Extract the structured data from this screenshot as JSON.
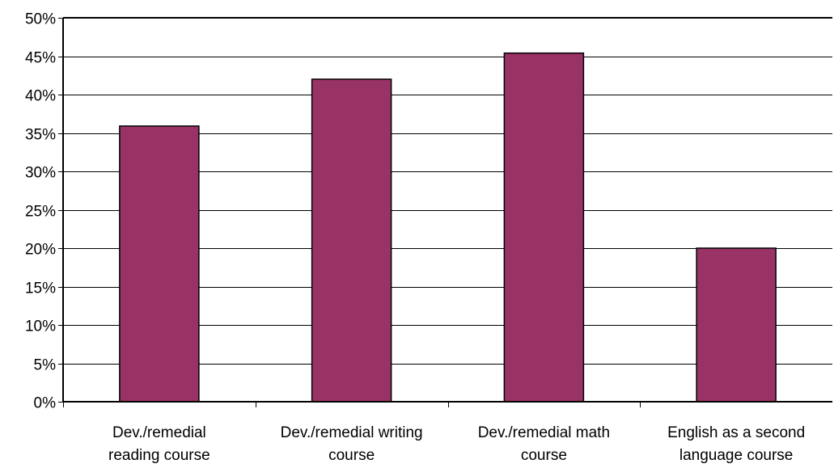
{
  "chart_data": {
    "type": "bar",
    "title": "",
    "xlabel": "",
    "ylabel": "",
    "categories": [
      [
        "Dev./remedial",
        "reading course"
      ],
      [
        "Dev./remedial writing",
        "course"
      ],
      [
        "Dev./remedial math",
        "course"
      ],
      [
        "English as a second",
        "language course"
      ]
    ],
    "values": [
      0.359,
      0.42,
      0.454,
      0.2
    ],
    "ylim": [
      0,
      0.5
    ],
    "yticks": [
      0,
      0.05,
      0.1,
      0.15,
      0.2,
      0.25,
      0.3,
      0.35,
      0.4,
      0.45,
      0.5
    ],
    "ytick_labels": [
      "0%",
      "5%",
      "10%",
      "15%",
      "20%",
      "25%",
      "30%",
      "35%",
      "40%",
      "45%",
      "50%"
    ],
    "grid": true,
    "legend": "none",
    "colors": {
      "bar_fill": "#993366",
      "bar_stroke": "#000000",
      "gridline": "#000000",
      "axis": "#000000",
      "background": "#ffffff"
    }
  }
}
